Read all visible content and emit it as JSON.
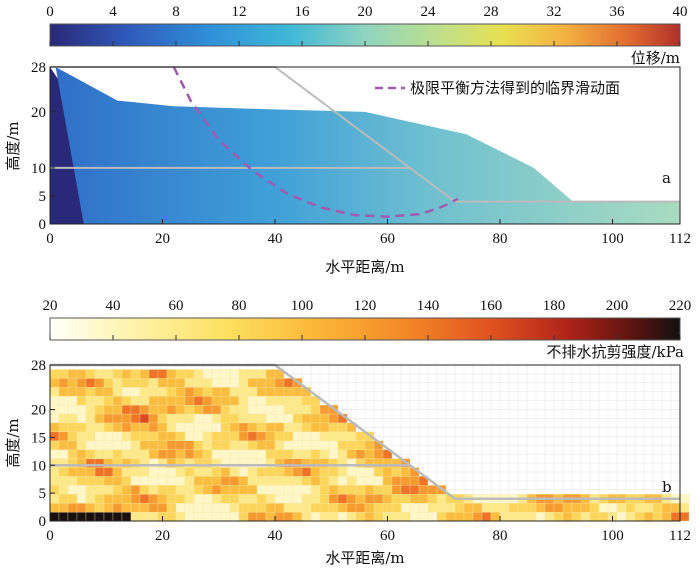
{
  "chart_data": [
    {
      "type": "scatter",
      "panel_label": "a",
      "xlabel": "水平距离/m",
      "ylabel": "高度/m",
      "xlim": [
        0,
        112
      ],
      "ylim": [
        0,
        28
      ],
      "xticks": [
        "0",
        "20",
        "40",
        "60",
        "80",
        "100",
        "112"
      ],
      "xtick_values": [
        0,
        20,
        40,
        60,
        80,
        100,
        112
      ],
      "yticks": [
        "0",
        "5",
        "10",
        "20",
        "28"
      ],
      "ytick_values": [
        0,
        5,
        10,
        20,
        28
      ],
      "colorbar": {
        "label": "位移/m",
        "min": 0,
        "max": 40,
        "ticks": [
          "0",
          "4",
          "8",
          "12",
          "16",
          "20",
          "24",
          "28",
          "32",
          "36",
          "40"
        ],
        "tick_values": [
          0,
          4,
          8,
          12,
          16,
          20,
          24,
          28,
          32,
          36,
          40
        ]
      },
      "legend": [
        {
          "name": "极限平衡方法得到的临界滑动面",
          "style": "dashed",
          "color": "#a05ab0"
        }
      ],
      "initial_slope_profile": {
        "x": [
          0,
          40,
          72,
          112
        ],
        "y": [
          28,
          28,
          4,
          4
        ]
      },
      "layer_boundary": {
        "x": [
          0,
          64
        ],
        "y": [
          10,
          10
        ]
      },
      "critical_slip_surface": {
        "x": [
          22,
          25,
          30,
          36,
          42,
          48,
          54,
          60,
          66,
          70,
          72.5
        ],
        "y": [
          28,
          22,
          15,
          9.5,
          5.5,
          3,
          1.6,
          1.3,
          1.8,
          3.2,
          4.5
        ]
      },
      "final_runout": {
        "x": [
          0,
          1,
          12,
          22,
          38,
          56,
          74,
          86,
          93,
          112
        ],
        "y": [
          0,
          28,
          22,
          21,
          20.5,
          20,
          16,
          10,
          4,
          4
        ]
      }
    },
    {
      "type": "heatmap",
      "panel_label": "b",
      "xlabel": "水平距离/m",
      "ylabel": "高度/m",
      "xlim": [
        0,
        112
      ],
      "ylim": [
        0,
        28
      ],
      "xticks": [
        "0",
        "20",
        "40",
        "60",
        "80",
        "100",
        "112"
      ],
      "xtick_values": [
        0,
        20,
        40,
        60,
        80,
        100,
        112
      ],
      "yticks": [
        "0",
        "5",
        "10",
        "15",
        "20",
        "28"
      ],
      "ytick_values": [
        0,
        5,
        10,
        15,
        20,
        28
      ],
      "colorbar": {
        "label": "不排水抗剪强度/kPa",
        "min": 20,
        "max": 220,
        "ticks": [
          "20",
          "40",
          "60",
          "80",
          "100",
          "120",
          "140",
          "160",
          "180",
          "200",
          "220"
        ],
        "tick_values": [
          20,
          40,
          60,
          80,
          100,
          120,
          140,
          160,
          180,
          200,
          220
        ]
      },
      "slope_profile": {
        "x": [
          0,
          40,
          72,
          112
        ],
        "y": [
          28,
          28,
          4,
          4
        ]
      },
      "layer_boundary": {
        "x": [
          0,
          64
        ],
        "y": [
          10,
          10
        ]
      }
    }
  ]
}
